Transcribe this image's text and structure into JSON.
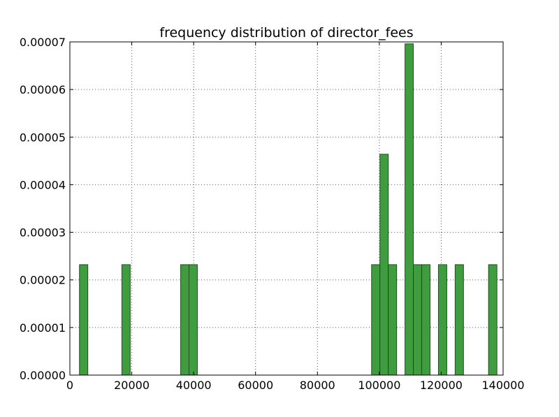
{
  "chart_data": {
    "type": "bar",
    "title": "frequency distribution of director_fees",
    "xlabel": "",
    "ylabel": "",
    "xlim": [
      0,
      140000
    ],
    "ylim": [
      0,
      7e-05
    ],
    "x_ticks": [
      "0",
      "20000",
      "40000",
      "60000",
      "80000",
      "100000",
      "120000",
      "140000"
    ],
    "y_ticks": [
      "0.00000",
      "0.00001",
      "0.00002",
      "0.00003",
      "0.00004",
      "0.00005",
      "0.00006",
      "0.00007"
    ],
    "grid": true,
    "bin_width": 2700,
    "bars": [
      {
        "x0": 3100,
        "value": 2.32e-05
      },
      {
        "x0": 16800,
        "value": 2.32e-05
      },
      {
        "x0": 35800,
        "value": 2.32e-05
      },
      {
        "x0": 38500,
        "value": 2.32e-05
      },
      {
        "x0": 97500,
        "value": 2.32e-05
      },
      {
        "x0": 100200,
        "value": 4.64e-05
      },
      {
        "x0": 102900,
        "value": 2.32e-05
      },
      {
        "x0": 108300,
        "value": 6.96e-05
      },
      {
        "x0": 111000,
        "value": 2.32e-05
      },
      {
        "x0": 113700,
        "value": 2.32e-05
      },
      {
        "x0": 119100,
        "value": 2.32e-05
      },
      {
        "x0": 124500,
        "value": 2.32e-05
      },
      {
        "x0": 135300,
        "value": 2.32e-05
      }
    ],
    "colors": {
      "bar_fill": "#3f9c3f",
      "bar_edge": "#1f4f1f",
      "grid": "#555555"
    }
  }
}
